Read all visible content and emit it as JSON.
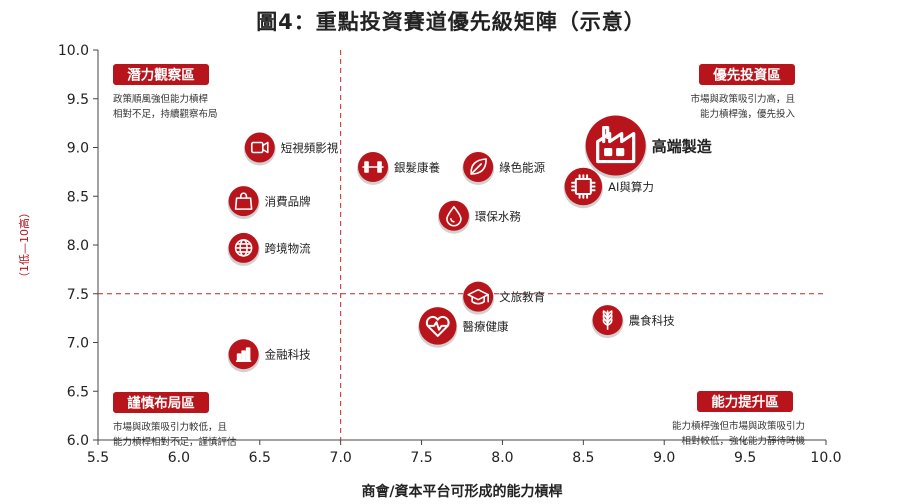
{
  "title": "圖4：重點投資賽道優先級矩陣（示意）",
  "colors": {
    "accent": "#b8141b",
    "text": "#222222",
    "grid": "#c0282a"
  },
  "chart_data": {
    "type": "scatter",
    "title": "圖4：重點投資賽道優先級矩陣（示意）",
    "xlabel": "商會/資本平台可形成的能力槓桿",
    "ylabel": "（1低—10高）",
    "xlim": [
      5.5,
      10.0
    ],
    "ylim": [
      6.0,
      10.0
    ],
    "xticks": [
      "5.5",
      "6.0",
      "6.5",
      "7.0",
      "7.5",
      "8.0",
      "8.5",
      "9.0",
      "9.5",
      "10.0"
    ],
    "yticks": [
      "6.0",
      "6.5",
      "7.0",
      "7.5",
      "8.0",
      "8.5",
      "9.0",
      "9.5",
      "10.0"
    ],
    "thresholds": {
      "x": 7.0,
      "y": 7.5
    },
    "points": [
      {
        "name": "短視頻影視",
        "x": 6.5,
        "y": 9.0,
        "size": 1,
        "icon": "video-camera-icon"
      },
      {
        "name": "消費品牌",
        "x": 6.4,
        "y": 8.45,
        "size": 1,
        "icon": "shopping-bag-icon"
      },
      {
        "name": "跨境物流",
        "x": 6.4,
        "y": 7.97,
        "size": 1,
        "icon": "globe-icon"
      },
      {
        "name": "金融科技",
        "x": 6.4,
        "y": 6.88,
        "size": 1,
        "icon": "bar-chart-icon"
      },
      {
        "name": "銀髮康養",
        "x": 7.2,
        "y": 8.8,
        "size": 1,
        "icon": "dumbbell-icon"
      },
      {
        "name": "綠色能源",
        "x": 7.85,
        "y": 8.8,
        "size": 1,
        "icon": "leaf-icon"
      },
      {
        "name": "環保水務",
        "x": 7.7,
        "y": 8.3,
        "size": 1,
        "icon": "water-drop-icon"
      },
      {
        "name": "高端製造",
        "x": 8.7,
        "y": 9.02,
        "size": 2,
        "icon": "factory-icon"
      },
      {
        "name": "AI與算力",
        "x": 8.5,
        "y": 8.6,
        "size": 1.25,
        "icon": "chip-icon"
      },
      {
        "name": "文旅教育",
        "x": 7.85,
        "y": 7.47,
        "size": 1,
        "icon": "graduation-cap-icon"
      },
      {
        "name": "醫療健康",
        "x": 7.6,
        "y": 7.17,
        "size": 1.25,
        "icon": "heart-pulse-icon"
      },
      {
        "name": "農食科技",
        "x": 8.65,
        "y": 7.23,
        "size": 1,
        "icon": "wheat-icon"
      }
    ],
    "quadrants": [
      {
        "id": "top-left",
        "label": "潛力觀察區",
        "desc": [
          "政策順風強但能力槓桿",
          "相對不足，持續觀察布局"
        ]
      },
      {
        "id": "top-right",
        "label": "優先投資區",
        "desc": [
          "市場與政策吸引力高，且",
          "能力槓桿強，優先投入"
        ]
      },
      {
        "id": "bottom-left",
        "label": "謹慎布局區",
        "desc": [
          "市場與政策吸引力較低，且",
          "能力槓桿相對不足，謹慎評估"
        ]
      },
      {
        "id": "bottom-right",
        "label": "能力提升區",
        "desc": [
          "能力槓桿強但市場與政策吸引力",
          "相對較低，強化能力靜待時機"
        ]
      }
    ]
  }
}
